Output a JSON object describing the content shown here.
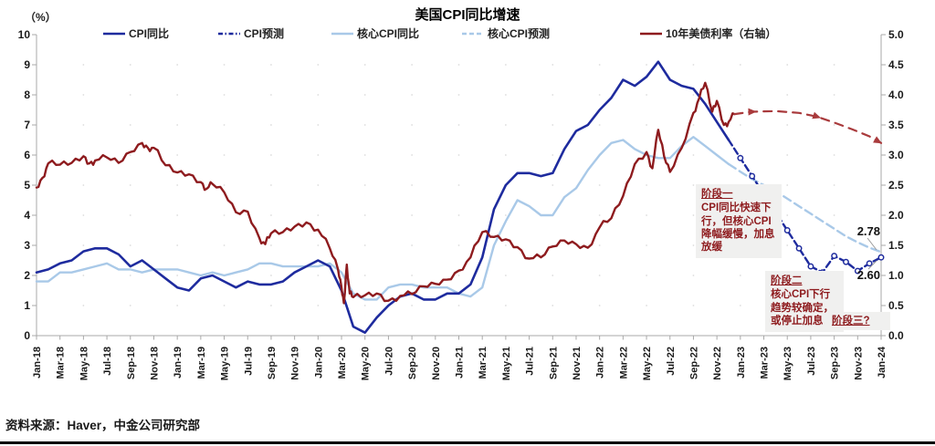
{
  "header": {
    "title": "美国CPI同比增速",
    "unit_label": "（%）"
  },
  "legend": {
    "items": [
      {
        "label": "CPI同比",
        "color": "#1E2B9E",
        "style": "solid"
      },
      {
        "label": "CPI预测",
        "color": "#1E2B9E",
        "style": "dash-dot"
      },
      {
        "label": "核心CPI同比",
        "color": "#A9C9E8",
        "style": "solid"
      },
      {
        "label": "核心CPI预测",
        "color": "#A9C9E8",
        "style": "dashed"
      },
      {
        "label": "10年美债利率（右轴）",
        "color": "#8E1B1E",
        "style": "solid"
      }
    ]
  },
  "chart_data": {
    "type": "line",
    "title": "美国CPI同比增速",
    "x_tick_labels": [
      "Jan-18",
      "Mar-18",
      "May-18",
      "Jul-18",
      "Sep-18",
      "Nov-18",
      "Jan-19",
      "Mar-19",
      "May-19",
      "Jul-19",
      "Sep-19",
      "Nov-19",
      "Jan-20",
      "Mar-20",
      "May-20",
      "Jul-20",
      "Sep-20",
      "Nov-20",
      "Jan-21",
      "Mar-21",
      "May-21",
      "Jul-21",
      "Sep-21",
      "Nov-21",
      "Jan-22",
      "Mar-22",
      "May-22",
      "Jul-22",
      "Sep-22",
      "Nov-22",
      "Jan-23",
      "Mar-23",
      "May-23",
      "Jul-23",
      "Sep-23",
      "Nov-23",
      "Jan-24"
    ],
    "left_axis": {
      "label": "（%）",
      "min": 0,
      "max": 10,
      "tick_step": 1
    },
    "right_axis": {
      "min": 0,
      "max": 5,
      "tick_step": 0.5
    },
    "grid": "faint-dots",
    "legend_position": "top",
    "series": [
      {
        "name": "核心CPI同比",
        "axis": "left",
        "color": "#A9C9E8",
        "width": 2.4,
        "start": 0,
        "values": [
          1.8,
          1.8,
          2.1,
          2.1,
          2.2,
          2.3,
          2.4,
          2.2,
          2.2,
          2.1,
          2.2,
          2.2,
          2.2,
          2.1,
          2.0,
          2.1,
          2.0,
          2.1,
          2.2,
          2.4,
          2.4,
          2.3,
          2.3,
          2.3,
          2.3,
          2.4,
          2.1,
          1.4,
          1.2,
          1.2,
          1.6,
          1.7,
          1.7,
          1.6,
          1.6,
          1.6,
          1.4,
          1.3,
          1.6,
          3.0,
          3.8,
          4.5,
          4.3,
          4.0,
          4.0,
          4.6,
          4.9,
          5.5,
          6.0,
          6.4,
          6.5,
          6.2,
          6.0,
          5.9,
          5.9,
          6.3,
          6.6,
          6.3,
          6.0,
          5.7
        ]
      },
      {
        "name": "核心CPI预测",
        "axis": "left",
        "color": "#A9C9E8",
        "width": 2.4,
        "dash": "9,5",
        "start": 59,
        "values": [
          5.7,
          5.45,
          5.2,
          5.0,
          4.8,
          4.55,
          4.3,
          4.05,
          3.8,
          3.55,
          3.3,
          3.1,
          2.92,
          2.78
        ]
      },
      {
        "name": "CPI同比",
        "axis": "left",
        "color": "#1E2B9E",
        "width": 2.6,
        "start": 0,
        "values": [
          2.1,
          2.2,
          2.4,
          2.5,
          2.8,
          2.9,
          2.9,
          2.7,
          2.3,
          2.5,
          2.2,
          1.9,
          1.6,
          1.5,
          1.9,
          2.0,
          1.8,
          1.6,
          1.8,
          1.7,
          1.7,
          1.8,
          2.1,
          2.3,
          2.5,
          2.3,
          1.5,
          0.3,
          0.1,
          0.6,
          1.0,
          1.3,
          1.4,
          1.2,
          1.2,
          1.4,
          1.4,
          1.7,
          2.6,
          4.2,
          5.0,
          5.4,
          5.4,
          5.3,
          5.4,
          6.2,
          6.8,
          7.0,
          7.5,
          7.9,
          8.5,
          8.3,
          8.6,
          9.1,
          8.5,
          8.3,
          8.2,
          7.7,
          7.1,
          6.5
        ]
      },
      {
        "name": "CPI预测",
        "axis": "left",
        "color": "#1E2B9E",
        "width": 2.4,
        "dash": "7,4",
        "markers": true,
        "start": 59,
        "values": [
          6.5,
          5.9,
          5.3,
          4.7,
          4.1,
          3.5,
          2.9,
          2.3,
          2.1,
          2.65,
          2.45,
          2.15,
          2.4,
          2.6
        ]
      },
      {
        "name": "10年美债利率",
        "axis": "right",
        "color": "#8E1B1E",
        "width": 2.4,
        "noise": 0.055,
        "points": [
          [
            0,
            2.46
          ],
          [
            0.5,
            2.62
          ],
          [
            1,
            2.86
          ],
          [
            2,
            2.84
          ],
          [
            3,
            2.87
          ],
          [
            4,
            2.98
          ],
          [
            4.5,
            2.86
          ],
          [
            5,
            2.91
          ],
          [
            6,
            2.96
          ],
          [
            7,
            2.87
          ],
          [
            8,
            3.05
          ],
          [
            9,
            3.2
          ],
          [
            9.5,
            3.12
          ],
          [
            10,
            3.12
          ],
          [
            11,
            2.83
          ],
          [
            12,
            2.71
          ],
          [
            13,
            2.68
          ],
          [
            14,
            2.55
          ],
          [
            14.5,
            2.44
          ],
          [
            15,
            2.52
          ],
          [
            16,
            2.38
          ],
          [
            17,
            2.05
          ],
          [
            18,
            2.06
          ],
          [
            19,
            1.62
          ],
          [
            19.5,
            1.52
          ],
          [
            20,
            1.7
          ],
          [
            21,
            1.72
          ],
          [
            22,
            1.81
          ],
          [
            23,
            1.88
          ],
          [
            24,
            1.76
          ],
          [
            25,
            1.45
          ],
          [
            25.7,
            1.1
          ],
          [
            26,
            0.8
          ],
          [
            26.2,
            0.54
          ],
          [
            26.45,
            1.18
          ],
          [
            26.7,
            0.7
          ],
          [
            27,
            0.64
          ],
          [
            28,
            0.67
          ],
          [
            29,
            0.7
          ],
          [
            30,
            0.58
          ],
          [
            31,
            0.66
          ],
          [
            32,
            0.69
          ],
          [
            33,
            0.82
          ],
          [
            34,
            0.86
          ],
          [
            35,
            0.93
          ],
          [
            36,
            1.08
          ],
          [
            37,
            1.3
          ],
          [
            38,
            1.72
          ],
          [
            39,
            1.64
          ],
          [
            40,
            1.6
          ],
          [
            41,
            1.47
          ],
          [
            42,
            1.28
          ],
          [
            43,
            1.3
          ],
          [
            44,
            1.48
          ],
          [
            45,
            1.58
          ],
          [
            46,
            1.52
          ],
          [
            47,
            1.46
          ],
          [
            48,
            1.8
          ],
          [
            49,
            1.95
          ],
          [
            50,
            2.32
          ],
          [
            51,
            2.85
          ],
          [
            52,
            3.05
          ],
          [
            52.5,
            2.78
          ],
          [
            53,
            3.42
          ],
          [
            53.5,
            2.98
          ],
          [
            54,
            2.72
          ],
          [
            55,
            3.12
          ],
          [
            56,
            3.7
          ],
          [
            56.5,
            3.95
          ],
          [
            57,
            4.2
          ],
          [
            57.6,
            3.72
          ],
          [
            58,
            3.9
          ],
          [
            58.6,
            3.5
          ],
          [
            59,
            3.55
          ],
          [
            59.5,
            3.68
          ]
        ]
      },
      {
        "name": "10年美债利率预测",
        "axis": "right",
        "color": "#A93A3C",
        "width": 2.2,
        "dash": "9,7",
        "arrows": [
          61.3,
          66.8,
          72
        ],
        "points": [
          [
            59.5,
            3.68
          ],
          [
            61,
            3.72
          ],
          [
            63,
            3.73
          ],
          [
            65,
            3.7
          ],
          [
            66.5,
            3.64
          ],
          [
            68,
            3.54
          ],
          [
            69.5,
            3.43
          ],
          [
            71,
            3.31
          ],
          [
            72,
            3.2
          ]
        ]
      }
    ],
    "annotations": [
      {
        "title": "阶段一",
        "body": "CPI同比快速下行，但核心CPI降幅缓慢，加息放缓"
      },
      {
        "title": "阶段二",
        "body": "核心CPI下行趋势较确定，或停止加息"
      },
      {
        "title": "阶段三?",
        "body": ""
      }
    ],
    "end_labels": [
      {
        "text": "2.78",
        "series": "核心CPI预测",
        "leader": [
          950,
          261,
          960,
          274
        ]
      },
      {
        "text": "2.60",
        "series": "CPI预测",
        "leader": [
          951,
          295,
          960,
          286
        ]
      }
    ]
  },
  "footer": {
    "source": "资料来源：Haver，中金公司研究部"
  }
}
